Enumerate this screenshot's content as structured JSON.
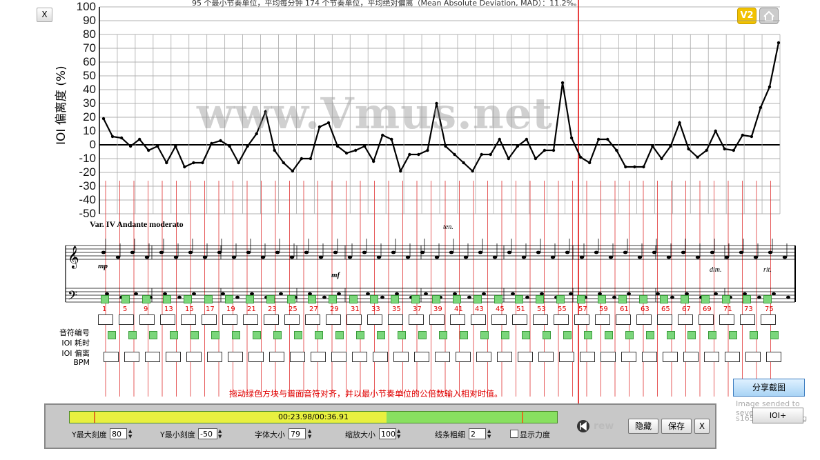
{
  "header": {
    "stats": "95 个最小节奏单位，平均每分钟 174 个节奏单位，平均绝对偏离（Mean Absolute Deviation, MAD）：11.2%。",
    "close_label": "X",
    "version_badge": "V2",
    "home_icon": "home-icon"
  },
  "chart_data": {
    "type": "line",
    "ylabel": "IOI 偏离度 (%)",
    "ylim": [
      -50,
      100
    ],
    "yticks": [
      100,
      90,
      80,
      70,
      60,
      50,
      40,
      30,
      20,
      10,
      0,
      -10,
      -20,
      -30,
      -40,
      -50
    ],
    "grid": true,
    "series": [
      {
        "values": [
          19,
          6,
          5,
          -1,
          4,
          -4,
          -1,
          -13,
          -1,
          -16,
          -13,
          -13,
          1,
          3,
          -1,
          -13,
          -1,
          8,
          24,
          -4,
          -13,
          -19,
          -10,
          -10,
          13,
          16,
          -1,
          -6,
          -4,
          -1,
          -12,
          7,
          4,
          -19,
          -7,
          -7,
          -4,
          30,
          -1,
          -7,
          -13,
          -19,
          -7,
          -7,
          4,
          -10,
          -1,
          4,
          -10,
          -4,
          -4,
          45,
          5,
          -9,
          -13,
          4,
          4,
          -4,
          -16,
          -16,
          -16,
          -1,
          -10,
          -1,
          16,
          -3,
          -9,
          -4,
          10,
          -3,
          -4,
          7,
          6,
          27,
          42,
          74
        ]
      }
    ]
  },
  "watermark": "www.Vmus.net",
  "score": {
    "title": "Var. IV Andante moderato",
    "dynamics": [
      "mp",
      "mf",
      "dim.",
      "rit."
    ],
    "tempo_mark": "ten."
  },
  "row_labels": {
    "note_number": "音符编号",
    "ioi_duration": "IOI 耗时",
    "ioi_deviation": "IOI 偏离",
    "bpm": "BPM"
  },
  "note_numbers": [
    "1",
    "5",
    "9",
    "13",
    "15",
    "17",
    "19",
    "21",
    "23",
    "25",
    "27",
    "29",
    "31",
    "33",
    "35",
    "37",
    "39",
    "41",
    "43",
    "45",
    "51",
    "53",
    "55",
    "57",
    "59",
    "61",
    "63",
    "65",
    "67",
    "69",
    "71",
    "73",
    "75"
  ],
  "instruction": "拖动绿色方块与谱面音符对齐，并以最小节奏单位的公倍数输入相对时值。",
  "share_button": "分享截图",
  "sent_notice": "Image sended to sever",
  "sent_file": "s16584634145.jpg",
  "ioi_plus_button": "IOI+",
  "playback": {
    "time_display": "00:23.98/00:36.91",
    "progress": 0.65,
    "rew_label": "rew"
  },
  "controls": {
    "y_max_label": "Y最大刻度",
    "y_max_value": "80",
    "y_min_label": "Y最小刻度",
    "y_min_value": "-50",
    "font_size_label": "字体大小",
    "font_size_value": "79",
    "zoom_label": "缩放大小",
    "zoom_value": "100",
    "line_width_label": "线条粗细",
    "line_width_value": "2",
    "show_scale_label": "显示力度",
    "hide_button": "隐藏",
    "save_button": "保存",
    "close_button": "X"
  }
}
